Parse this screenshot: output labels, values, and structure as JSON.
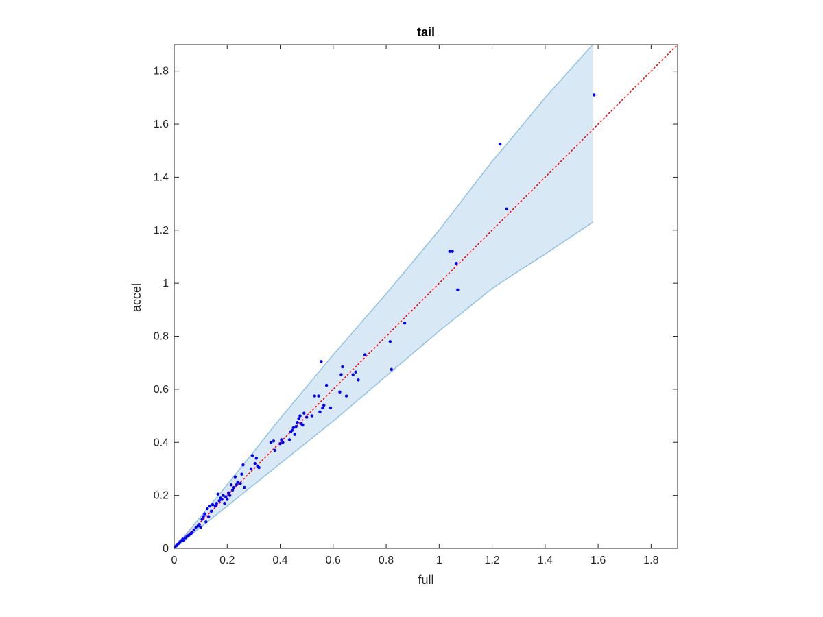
{
  "chart_data": {
    "type": "scatter",
    "title": "tail",
    "xlabel": "full",
    "ylabel": "accel",
    "xlim": [
      0,
      1.9
    ],
    "ylim": [
      0,
      1.9
    ],
    "xticks": [
      0,
      0.2,
      0.4,
      0.6,
      0.8,
      1,
      1.2,
      1.4,
      1.6,
      1.8
    ],
    "yticks": [
      0,
      0.2,
      0.4,
      0.6,
      0.8,
      1,
      1.2,
      1.4,
      1.6,
      1.8
    ],
    "xtick_labels": [
      "0",
      "0.2",
      "0.4",
      "0.6",
      "0.8",
      "1",
      "1.2",
      "1.4",
      "1.6",
      "1.8"
    ],
    "ytick_labels": [
      "0",
      "0.2",
      "0.4",
      "0.6",
      "0.8",
      "1",
      "1.2",
      "1.4",
      "1.6",
      "1.8"
    ],
    "grid": false,
    "colors": {
      "points": "#0000ff",
      "reference_line": "#ff0000",
      "band_fill": "#d9e8f5",
      "band_edge": "#8fc1e3",
      "axes": "#262626"
    },
    "reference_line": {
      "x": [
        0,
        1.9
      ],
      "y": [
        0,
        1.9
      ],
      "style": "dotted"
    },
    "band": {
      "x": [
        0,
        0.2,
        0.4,
        0.6,
        0.8,
        1.0,
        1.2,
        1.26,
        1.4,
        1.58
      ],
      "upper": [
        0,
        0.24,
        0.49,
        0.73,
        0.96,
        1.2,
        1.46,
        1.53,
        1.7,
        1.9
      ],
      "lower": [
        0,
        0.16,
        0.32,
        0.48,
        0.65,
        0.82,
        0.98,
        1.02,
        1.11,
        1.23
      ]
    },
    "series": [
      {
        "x": [
          0.003,
          0.008,
          0.012,
          0.018,
          0.022,
          0.028,
          0.032,
          0.036,
          0.042,
          0.048,
          0.055,
          0.062,
          0.068,
          0.075,
          0.082,
          0.09,
          0.095,
          0.1,
          0.105,
          0.11,
          0.115,
          0.12,
          0.125,
          0.13,
          0.135,
          0.14,
          0.145,
          0.155,
          0.16,
          0.165,
          0.17,
          0.175,
          0.18,
          0.185,
          0.19,
          0.195,
          0.2,
          0.205,
          0.21,
          0.215,
          0.22,
          0.225,
          0.23,
          0.235,
          0.24,
          0.25,
          0.255,
          0.26,
          0.265,
          0.29,
          0.295,
          0.305,
          0.31,
          0.315,
          0.32,
          0.365,
          0.375,
          0.38,
          0.4,
          0.405,
          0.41,
          0.435,
          0.44,
          0.445,
          0.45,
          0.455,
          0.46,
          0.465,
          0.47,
          0.475,
          0.48,
          0.485,
          0.49,
          0.5,
          0.52,
          0.53,
          0.545,
          0.55,
          0.555,
          0.56,
          0.565,
          0.575,
          0.59,
          0.625,
          0.63,
          0.635,
          0.65,
          0.675,
          0.685,
          0.695,
          0.72,
          0.815,
          0.82,
          0.87,
          1.04,
          1.05,
          1.065,
          1.07,
          1.23,
          1.255,
          1.585
        ],
        "y": [
          0.005,
          0.01,
          0.015,
          0.02,
          0.025,
          0.03,
          0.035,
          0.03,
          0.04,
          0.045,
          0.05,
          0.055,
          0.06,
          0.07,
          0.08,
          0.085,
          0.09,
          0.08,
          0.11,
          0.12,
          0.13,
          0.1,
          0.15,
          0.12,
          0.16,
          0.14,
          0.165,
          0.16,
          0.17,
          0.205,
          0.18,
          0.19,
          0.185,
          0.2,
          0.17,
          0.195,
          0.185,
          0.21,
          0.2,
          0.24,
          0.22,
          0.23,
          0.27,
          0.24,
          0.25,
          0.245,
          0.28,
          0.315,
          0.23,
          0.3,
          0.35,
          0.32,
          0.34,
          0.31,
          0.305,
          0.4,
          0.405,
          0.37,
          0.395,
          0.41,
          0.4,
          0.41,
          0.44,
          0.445,
          0.455,
          0.43,
          0.46,
          0.475,
          0.49,
          0.5,
          0.47,
          0.465,
          0.51,
          0.495,
          0.5,
          0.575,
          0.575,
          0.515,
          0.705,
          0.53,
          0.54,
          0.615,
          0.53,
          0.59,
          0.655,
          0.685,
          0.575,
          0.655,
          0.665,
          0.635,
          0.73,
          0.78,
          0.675,
          0.85,
          1.12,
          1.12,
          1.075,
          0.975,
          1.525,
          1.28,
          1.71
        ]
      }
    ]
  }
}
